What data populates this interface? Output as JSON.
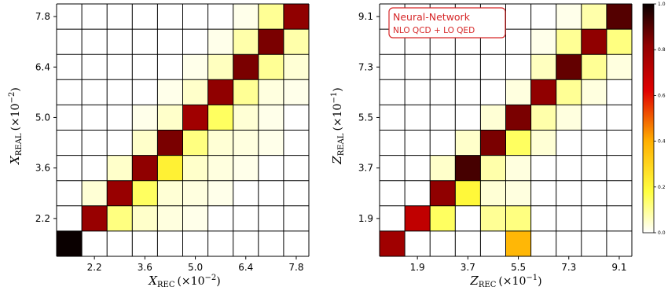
{
  "chart_data": [
    {
      "type": "heatmap",
      "title": "",
      "xlabel_var": "X",
      "xlabel_sub": "REC",
      "xlabel_scale": "(×10",
      "xlabel_exp": "−2",
      "xlabel_close": ")",
      "ylabel_var": "X",
      "ylabel_sub": "REAL",
      "ylabel_scale": "(×10",
      "ylabel_exp": "−2",
      "ylabel_close": ")",
      "x_ticks": [
        "2.2",
        "3.6",
        "5.0",
        "6.4",
        "7.8"
      ],
      "y_ticks": [
        "2.2",
        "3.6",
        "5.0",
        "6.4",
        "7.8"
      ],
      "grid": true,
      "n_bins": 10,
      "values": [
        [
          1.0,
          0.0,
          0.0,
          0.0,
          0.0,
          0.0,
          0.0,
          0.0,
          0.0,
          0.0
        ],
        [
          0.0,
          0.8,
          0.12,
          0.05,
          0.03,
          0.02,
          0.0,
          0.0,
          0.0,
          0.0
        ],
        [
          0.0,
          0.04,
          0.8,
          0.15,
          0.04,
          0.03,
          0.02,
          0.0,
          0.0,
          0.0
        ],
        [
          0.0,
          0.0,
          0.05,
          0.82,
          0.22,
          0.05,
          0.03,
          0.02,
          0.0,
          0.0
        ],
        [
          0.0,
          0.0,
          0.0,
          0.05,
          0.85,
          0.12,
          0.04,
          0.03,
          0.02,
          0.0
        ],
        [
          0.0,
          0.0,
          0.0,
          0.02,
          0.05,
          0.78,
          0.15,
          0.04,
          0.02,
          0.0
        ],
        [
          0.0,
          0.0,
          0.0,
          0.0,
          0.02,
          0.05,
          0.82,
          0.1,
          0.03,
          0.02
        ],
        [
          0.0,
          0.0,
          0.0,
          0.0,
          0.0,
          0.02,
          0.06,
          0.85,
          0.1,
          0.04
        ],
        [
          0.0,
          0.0,
          0.0,
          0.0,
          0.0,
          0.0,
          0.02,
          0.08,
          0.85,
          0.08
        ],
        [
          0.0,
          0.0,
          0.0,
          0.0,
          0.0,
          0.0,
          0.0,
          0.02,
          0.1,
          0.82
        ]
      ]
    },
    {
      "type": "heatmap",
      "title": "",
      "xlabel_var": "Z",
      "xlabel_sub": "REC",
      "xlabel_scale": "(×10",
      "xlabel_exp": "−1",
      "xlabel_close": ")",
      "ylabel_var": "Z",
      "ylabel_sub": "REAL",
      "ylabel_scale": "(×10",
      "ylabel_exp": "−1",
      "ylabel_close": ")",
      "x_ticks": [
        "1.9",
        "3.7",
        "5.5",
        "7.3",
        "9.1"
      ],
      "y_ticks": [
        "1.9",
        "3.7",
        "5.5",
        "7.3",
        "9.1"
      ],
      "grid": true,
      "n_bins": 10,
      "annotation_line1": "Neural-Network",
      "annotation_line2": "NLO QCD + LO QED",
      "colorbar_ticks": [
        "0.0",
        "0.2",
        "0.4",
        "0.6",
        "0.8",
        "1.0"
      ],
      "colorbar_range": [
        0.0,
        1.0
      ],
      "values": [
        [
          0.78,
          0.0,
          0.0,
          0.0,
          0.0,
          0.38,
          0.0,
          0.0,
          0.0,
          0.0
        ],
        [
          0.0,
          0.7,
          0.15,
          0.0,
          0.1,
          0.12,
          0.0,
          0.0,
          0.0,
          0.0
        ],
        [
          0.0,
          0.0,
          0.82,
          0.2,
          0.04,
          0.03,
          0.0,
          0.0,
          0.0,
          0.0
        ],
        [
          0.0,
          0.0,
          0.05,
          0.92,
          0.08,
          0.03,
          0.0,
          0.0,
          0.0,
          0.0
        ],
        [
          0.0,
          0.0,
          0.0,
          0.05,
          0.85,
          0.15,
          0.04,
          0.0,
          0.0,
          0.0
        ],
        [
          0.0,
          0.0,
          0.0,
          0.0,
          0.04,
          0.85,
          0.08,
          0.03,
          0.0,
          0.0
        ],
        [
          0.0,
          0.0,
          0.0,
          0.0,
          0.0,
          0.03,
          0.82,
          0.1,
          0.03,
          0.0
        ],
        [
          0.0,
          0.0,
          0.0,
          0.0,
          0.0,
          0.0,
          0.06,
          0.88,
          0.1,
          0.03
        ],
        [
          0.0,
          0.0,
          0.0,
          0.0,
          0.0,
          0.0,
          0.02,
          0.1,
          0.82,
          0.12
        ],
        [
          0.0,
          0.0,
          0.0,
          0.0,
          0.0,
          0.0,
          0.0,
          0.02,
          0.08,
          0.9
        ]
      ]
    }
  ]
}
